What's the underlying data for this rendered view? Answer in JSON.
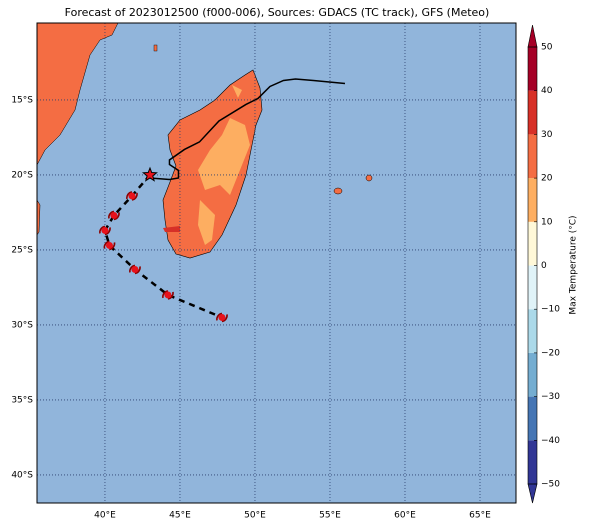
{
  "chart_data": {
    "type": "map",
    "title": "Forecast of 2023012500 (f000-006), Sources: GDACS (TC track), GFS (Meteo)",
    "xlim": [
      35.47,
      67.4
    ],
    "ylim": [
      -41.87,
      -9.87
    ],
    "xticks": [
      {
        "value": 40,
        "label": "40°E"
      },
      {
        "value": 45,
        "label": "45°E"
      },
      {
        "value": 50,
        "label": "50°E"
      },
      {
        "value": 55,
        "label": "55°E"
      },
      {
        "value": 60,
        "label": "60°E"
      },
      {
        "value": 65,
        "label": "65°E"
      }
    ],
    "yticks": [
      {
        "value": -15,
        "label": "15°S"
      },
      {
        "value": -20,
        "label": "20°S"
      },
      {
        "value": -25,
        "label": "25°S"
      },
      {
        "value": -30,
        "label": "30°S"
      },
      {
        "value": -35,
        "label": "35°S"
      },
      {
        "value": -40,
        "label": "40°S"
      }
    ],
    "grid": true,
    "observed_track": {
      "color": "#000000",
      "lon": [
        56.0,
        53.9,
        52.7,
        51.9,
        51.0,
        50.2,
        49.4,
        47.6,
        46.3,
        45.3,
        44.3,
        44.3,
        44.9,
        44.9,
        44.3,
        43.0
      ],
      "lat": [
        -13.9,
        -13.7,
        -13.6,
        -13.7,
        -14.1,
        -14.9,
        -15.3,
        -16.4,
        -17.8,
        -18.3,
        -19.0,
        -19.3,
        -19.7,
        -20.2,
        -20.3,
        -20.2
      ]
    },
    "forecast_track": {
      "color": "#000000",
      "marker_color": "#e8121b",
      "lon": [
        43.0,
        41.8,
        40.6,
        40.0,
        40.3,
        42.0,
        44.2,
        47.8
      ],
      "lat": [
        -20.0,
        -21.4,
        -22.7,
        -23.7,
        -24.7,
        -26.3,
        -28.0,
        -29.5
      ]
    },
    "colorbar": {
      "label": "Max Temperature (°C)",
      "lim": [
        -50,
        50
      ],
      "ticks": [
        {
          "value": -50,
          "label": "−50"
        },
        {
          "value": -40,
          "label": "−40"
        },
        {
          "value": -30,
          "label": "−30"
        },
        {
          "value": -20,
          "label": "−20"
        },
        {
          "value": -10,
          "label": "−10"
        },
        0,
        10,
        20,
        30,
        40,
        50
      ],
      "colors": [
        "#313695",
        "#4575b4",
        "#74add1",
        "#abd9e9",
        "#e0f3f8",
        "#fff8d8",
        "#fdae61",
        "#f46d43",
        "#d73027",
        "#a50026"
      ]
    }
  }
}
